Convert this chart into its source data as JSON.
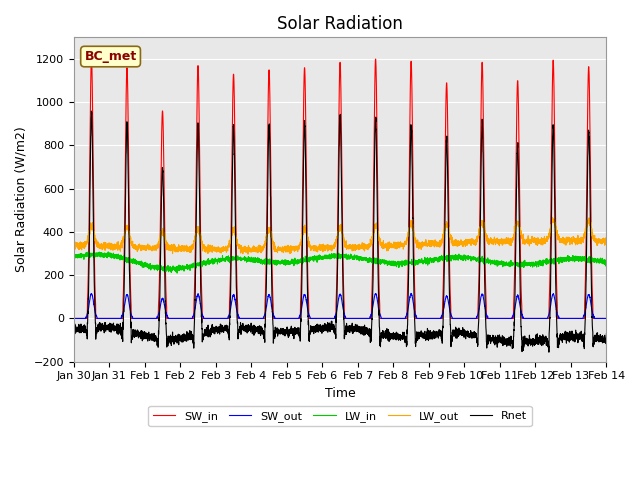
{
  "title": "Solar Radiation",
  "xlabel": "Time",
  "ylabel": "Solar Radiation (W/m2)",
  "ylim": [
    -200,
    1300
  ],
  "yticks": [
    -200,
    0,
    200,
    400,
    600,
    800,
    1000,
    1200
  ],
  "num_days": 15,
  "annotation_text": "BC_met",
  "legend_labels": [
    "SW_in",
    "SW_out",
    "LW_in",
    "LW_out",
    "Rnet"
  ],
  "line_colors": [
    "#FF0000",
    "#0000FF",
    "#00CC00",
    "#FFA500",
    "#000000"
  ],
  "plot_bg_color": "#E8E8E8",
  "fig_bg_color": "#FFFFFF",
  "grid_color": "#FFFFFF",
  "title_fontsize": 12,
  "label_fontsize": 9,
  "tick_fontsize": 8,
  "x_tick_labels": [
    "Jan 30",
    "Jan 31",
    "Feb 1",
    "Feb 2",
    "Feb 3",
    "Feb 4",
    "Feb 5",
    "Feb 6",
    "Feb 7",
    "Feb 8",
    "Feb 9",
    "Feb 10",
    "Feb 11",
    "Feb 12",
    "Feb 13",
    "Feb 14"
  ],
  "sw_in_peaks": [
    1200,
    1160,
    960,
    1170,
    1130,
    1150,
    1160,
    1185,
    1200,
    1190,
    1090,
    1185,
    1100,
    1195,
    1165
  ],
  "lw_out_base": 340,
  "lw_in_base": 270,
  "rnet_night": -80
}
